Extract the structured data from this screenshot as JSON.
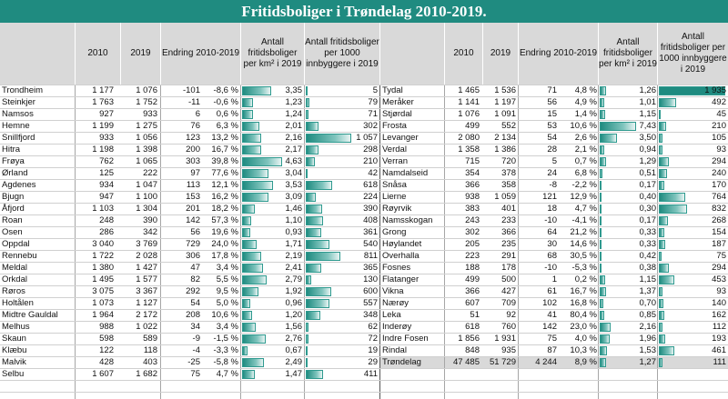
{
  "title": "Fritidsboliger i Trøndelag 2010-2019.",
  "headers": {
    "y2010": "2010",
    "y2019": "2019",
    "change": "Endring 2010-2019",
    "per_km2": "Antall fritidsboliger per km² i 2019",
    "per_1000": "Antall fritidsboliger per 1000 innbyggere i 2019"
  },
  "colors": {
    "title_bg": "#1f8b80",
    "header_bg": "#d9d9d9",
    "bar": "#1f8b80",
    "highlight": "#1f8b80"
  },
  "left_rows": [
    {
      "name": "Trondheim",
      "y2010": "1 177",
      "y2019": "1 076",
      "change": "-101",
      "pct": "-8,6 %",
      "pctval": -8.6,
      "km2": "3,35",
      "km2val": 3.35,
      "p1000": "5",
      "p1000val": 5
    },
    {
      "name": "Steinkjer",
      "y2010": "1 763",
      "y2019": "1 752",
      "change": "-11",
      "pct": "-0,6 %",
      "pctval": -0.6,
      "km2": "1,23",
      "km2val": 1.23,
      "p1000": "79",
      "p1000val": 79
    },
    {
      "name": "Namsos",
      "y2010": "927",
      "y2019": "933",
      "change": "6",
      "pct": "0,6 %",
      "pctval": 0.6,
      "km2": "1,24",
      "km2val": 1.24,
      "p1000": "71",
      "p1000val": 71
    },
    {
      "name": "Hemne",
      "y2010": "1 199",
      "y2019": "1 275",
      "change": "76",
      "pct": "6,3 %",
      "pctval": 6.3,
      "km2": "2,01",
      "km2val": 2.01,
      "p1000": "302",
      "p1000val": 302
    },
    {
      "name": "Snillfjord",
      "y2010": "933",
      "y2019": "1 056",
      "change": "123",
      "pct": "13,2 %",
      "pctval": 13.2,
      "km2": "2,16",
      "km2val": 2.16,
      "p1000": "1 057",
      "p1000val": 1057
    },
    {
      "name": "Hitra",
      "y2010": "1 198",
      "y2019": "1 398",
      "change": "200",
      "pct": "16,7 %",
      "pctval": 16.7,
      "km2": "2,17",
      "km2val": 2.17,
      "p1000": "298",
      "p1000val": 298
    },
    {
      "name": "Frøya",
      "y2010": "762",
      "y2019": "1 065",
      "change": "303",
      "pct": "39,8 %",
      "pctval": 39.8,
      "km2": "4,63",
      "km2val": 4.63,
      "p1000": "210",
      "p1000val": 210
    },
    {
      "name": "Ørland",
      "y2010": "125",
      "y2019": "222",
      "change": "97",
      "pct": "77,6 %",
      "pctval": 77.6,
      "km2": "3,04",
      "km2val": 3.04,
      "p1000": "42",
      "p1000val": 42
    },
    {
      "name": "Agdenes",
      "y2010": "934",
      "y2019": "1 047",
      "change": "113",
      "pct": "12,1 %",
      "pctval": 12.1,
      "km2": "3,53",
      "km2val": 3.53,
      "p1000": "618",
      "p1000val": 618
    },
    {
      "name": "Bjugn",
      "y2010": "947",
      "y2019": "1 100",
      "change": "153",
      "pct": "16,2 %",
      "pctval": 16.2,
      "km2": "3,09",
      "km2val": 3.09,
      "p1000": "224",
      "p1000val": 224
    },
    {
      "name": "Åfjord",
      "y2010": "1 103",
      "y2019": "1 304",
      "change": "201",
      "pct": "18,2 %",
      "pctval": 18.2,
      "km2": "1,46",
      "km2val": 1.46,
      "p1000": "390",
      "p1000val": 390
    },
    {
      "name": "Roan",
      "y2010": "248",
      "y2019": "390",
      "change": "142",
      "pct": "57,3 %",
      "pctval": 57.3,
      "km2": "1,10",
      "km2val": 1.1,
      "p1000": "408",
      "p1000val": 408
    },
    {
      "name": "Osen",
      "y2010": "286",
      "y2019": "342",
      "change": "56",
      "pct": "19,6 %",
      "pctval": 19.6,
      "km2": "0,93",
      "km2val": 0.93,
      "p1000": "361",
      "p1000val": 361
    },
    {
      "name": "Oppdal",
      "y2010": "3 040",
      "y2019": "3 769",
      "change": "729",
      "pct": "24,0 %",
      "pctval": 24.0,
      "km2": "1,71",
      "km2val": 1.71,
      "p1000": "540",
      "p1000val": 540
    },
    {
      "name": "Rennebu",
      "y2010": "1 722",
      "y2019": "2 028",
      "change": "306",
      "pct": "17,8 %",
      "pctval": 17.8,
      "km2": "2,19",
      "km2val": 2.19,
      "p1000": "811",
      "p1000val": 811
    },
    {
      "name": "Meldal",
      "y2010": "1 380",
      "y2019": "1 427",
      "change": "47",
      "pct": "3,4 %",
      "pctval": 3.4,
      "km2": "2,41",
      "km2val": 2.41,
      "p1000": "365",
      "p1000val": 365
    },
    {
      "name": "Orkdal",
      "y2010": "1 495",
      "y2019": "1 577",
      "change": "82",
      "pct": "5,5 %",
      "pctval": 5.5,
      "km2": "2,79",
      "km2val": 2.79,
      "p1000": "130",
      "p1000val": 130
    },
    {
      "name": "Røros",
      "y2010": "3 075",
      "y2019": "3 367",
      "change": "292",
      "pct": "9,5 %",
      "pctval": 9.5,
      "km2": "1,92",
      "km2val": 1.92,
      "p1000": "600",
      "p1000val": 600
    },
    {
      "name": "Holtålen",
      "y2010": "1 073",
      "y2019": "1 127",
      "change": "54",
      "pct": "5,0 %",
      "pctval": 5.0,
      "km2": "0,96",
      "km2val": 0.96,
      "p1000": "557",
      "p1000val": 557
    },
    {
      "name": "Midtre Gauldal",
      "y2010": "1 964",
      "y2019": "2 172",
      "change": "208",
      "pct": "10,6 %",
      "pctval": 10.6,
      "km2": "1,20",
      "km2val": 1.2,
      "p1000": "348",
      "p1000val": 348
    },
    {
      "name": "Melhus",
      "y2010": "988",
      "y2019": "1 022",
      "change": "34",
      "pct": "3,4 %",
      "pctval": 3.4,
      "km2": "1,56",
      "km2val": 1.56,
      "p1000": "62",
      "p1000val": 62
    },
    {
      "name": "Skaun",
      "y2010": "598",
      "y2019": "589",
      "change": "-9",
      "pct": "-1,5 %",
      "pctval": -1.5,
      "km2": "2,76",
      "km2val": 2.76,
      "p1000": "72",
      "p1000val": 72
    },
    {
      "name": "Klæbu",
      "y2010": "122",
      "y2019": "118",
      "change": "-4",
      "pct": "-3,3 %",
      "pctval": -3.3,
      "km2": "0,67",
      "km2val": 0.67,
      "p1000": "19",
      "p1000val": 19
    },
    {
      "name": "Malvik",
      "y2010": "428",
      "y2019": "403",
      "change": "-25",
      "pct": "-5,8 %",
      "pctval": -5.8,
      "km2": "2,49",
      "km2val": 2.49,
      "p1000": "29",
      "p1000val": 29
    },
    {
      "name": "Selbu",
      "y2010": "1 607",
      "y2019": "1 682",
      "change": "75",
      "pct": "4,7 %",
      "pctval": 4.7,
      "km2": "1,47",
      "km2val": 1.47,
      "p1000": "411",
      "p1000val": 411
    }
  ],
  "right_rows": [
    {
      "name": "Tydal",
      "y2010": "1 465",
      "y2019": "1 536",
      "change": "71",
      "pct": "4,8 %",
      "pctval": 4.8,
      "km2": "1,26",
      "km2val": 1.26,
      "p1000": "1 935",
      "p1000val": 1935
    },
    {
      "name": "Meråker",
      "y2010": "1 141",
      "y2019": "1 197",
      "change": "56",
      "pct": "4,9 %",
      "pctval": 4.9,
      "km2": "1,01",
      "km2val": 1.01,
      "p1000": "492",
      "p1000val": 492
    },
    {
      "name": "Stjørdal",
      "y2010": "1 076",
      "y2019": "1 091",
      "change": "15",
      "pct": "1,4 %",
      "pctval": 1.4,
      "km2": "1,15",
      "km2val": 1.15,
      "p1000": "45",
      "p1000val": 45
    },
    {
      "name": "Frosta",
      "y2010": "499",
      "y2019": "552",
      "change": "53",
      "pct": "10,6 %",
      "pctval": 10.6,
      "km2": "7,43",
      "km2val": 7.43,
      "p1000": "210",
      "p1000val": 210
    },
    {
      "name": "Levanger",
      "y2010": "2 080",
      "y2019": "2 134",
      "change": "54",
      "pct": "2,6 %",
      "pctval": 2.6,
      "km2": "3,50",
      "km2val": 3.5,
      "p1000": "105",
      "p1000val": 105
    },
    {
      "name": "Verdal",
      "y2010": "1 358",
      "y2019": "1 386",
      "change": "28",
      "pct": "2,1 %",
      "pctval": 2.1,
      "km2": "0,94",
      "km2val": 0.94,
      "p1000": "93",
      "p1000val": 93
    },
    {
      "name": "Verran",
      "y2010": "715",
      "y2019": "720",
      "change": "5",
      "pct": "0,7 %",
      "pctval": 0.7,
      "km2": "1,29",
      "km2val": 1.29,
      "p1000": "294",
      "p1000val": 294
    },
    {
      "name": "Namdalseid",
      "y2010": "354",
      "y2019": "378",
      "change": "24",
      "pct": "6,8 %",
      "pctval": 6.8,
      "km2": "0,51",
      "km2val": 0.51,
      "p1000": "240",
      "p1000val": 240
    },
    {
      "name": "Snåsa",
      "y2010": "366",
      "y2019": "358",
      "change": "-8",
      "pct": "-2,2 %",
      "pctval": -2.2,
      "km2": "0,17",
      "km2val": 0.17,
      "p1000": "170",
      "p1000val": 170
    },
    {
      "name": "Lierne",
      "y2010": "938",
      "y2019": "1 059",
      "change": "121",
      "pct": "12,9 %",
      "pctval": 12.9,
      "km2": "0,40",
      "km2val": 0.4,
      "p1000": "764",
      "p1000val": 764
    },
    {
      "name": "Røyrvik",
      "y2010": "383",
      "y2019": "401",
      "change": "18",
      "pct": "4,7 %",
      "pctval": 4.7,
      "km2": "0,30",
      "km2val": 0.3,
      "p1000": "832",
      "p1000val": 832
    },
    {
      "name": "Namsskogan",
      "y2010": "243",
      "y2019": "233",
      "change": "-10",
      "pct": "-4,1 %",
      "pctval": -4.1,
      "km2": "0,17",
      "km2val": 0.17,
      "p1000": "268",
      "p1000val": 268
    },
    {
      "name": "Grong",
      "y2010": "302",
      "y2019": "366",
      "change": "64",
      "pct": "21,2 %",
      "pctval": 21.2,
      "km2": "0,33",
      "km2val": 0.33,
      "p1000": "154",
      "p1000val": 154
    },
    {
      "name": "Høylandet",
      "y2010": "205",
      "y2019": "235",
      "change": "30",
      "pct": "14,6 %",
      "pctval": 14.6,
      "km2": "0,33",
      "km2val": 0.33,
      "p1000": "187",
      "p1000val": 187
    },
    {
      "name": "Overhalla",
      "y2010": "223",
      "y2019": "291",
      "change": "68",
      "pct": "30,5 %",
      "pctval": 30.5,
      "km2": "0,42",
      "km2val": 0.42,
      "p1000": "75",
      "p1000val": 75
    },
    {
      "name": "Fosnes",
      "y2010": "188",
      "y2019": "178",
      "change": "-10",
      "pct": "-5,3 %",
      "pctval": -5.3,
      "km2": "0,38",
      "km2val": 0.38,
      "p1000": "294",
      "p1000val": 294
    },
    {
      "name": "Flatanger",
      "y2010": "499",
      "y2019": "500",
      "change": "1",
      "pct": "0,2 %",
      "pctval": 0.2,
      "km2": "1,15",
      "km2val": 1.15,
      "p1000": "453",
      "p1000val": 453
    },
    {
      "name": "Vikna",
      "y2010": "366",
      "y2019": "427",
      "change": "61",
      "pct": "16,7 %",
      "pctval": 16.7,
      "km2": "1,37",
      "km2val": 1.37,
      "p1000": "93",
      "p1000val": 93
    },
    {
      "name": "Nærøy",
      "y2010": "607",
      "y2019": "709",
      "change": "102",
      "pct": "16,8 %",
      "pctval": 16.8,
      "km2": "0,70",
      "km2val": 0.7,
      "p1000": "140",
      "p1000val": 140
    },
    {
      "name": "Leka",
      "y2010": "51",
      "y2019": "92",
      "change": "41",
      "pct": "80,4 %",
      "pctval": 80.4,
      "km2": "0,85",
      "km2val": 0.85,
      "p1000": "162",
      "p1000val": 162
    },
    {
      "name": "Inderøy",
      "y2010": "618",
      "y2019": "760",
      "change": "142",
      "pct": "23,0 %",
      "pctval": 23.0,
      "km2": "2,16",
      "km2val": 2.16,
      "p1000": "112",
      "p1000val": 112
    },
    {
      "name": "Indre Fosen",
      "y2010": "1 856",
      "y2019": "1 931",
      "change": "75",
      "pct": "4,0 %",
      "pctval": 4.0,
      "km2": "1,96",
      "km2val": 1.96,
      "p1000": "193",
      "p1000val": 193
    },
    {
      "name": "Rindal",
      "y2010": "848",
      "y2019": "935",
      "change": "87",
      "pct": "10,3 %",
      "pctval": 10.3,
      "km2": "1,53",
      "km2val": 1.53,
      "p1000": "461",
      "p1000val": 461
    },
    {
      "name": "Trøndelag",
      "y2010": "47 485",
      "y2019": "51 729",
      "change": "4 244",
      "pct": "8,9 %",
      "pctval": 8.9,
      "km2": "1,27",
      "km2val": 1.27,
      "p1000": "111",
      "p1000val": 111,
      "total": true
    }
  ]
}
